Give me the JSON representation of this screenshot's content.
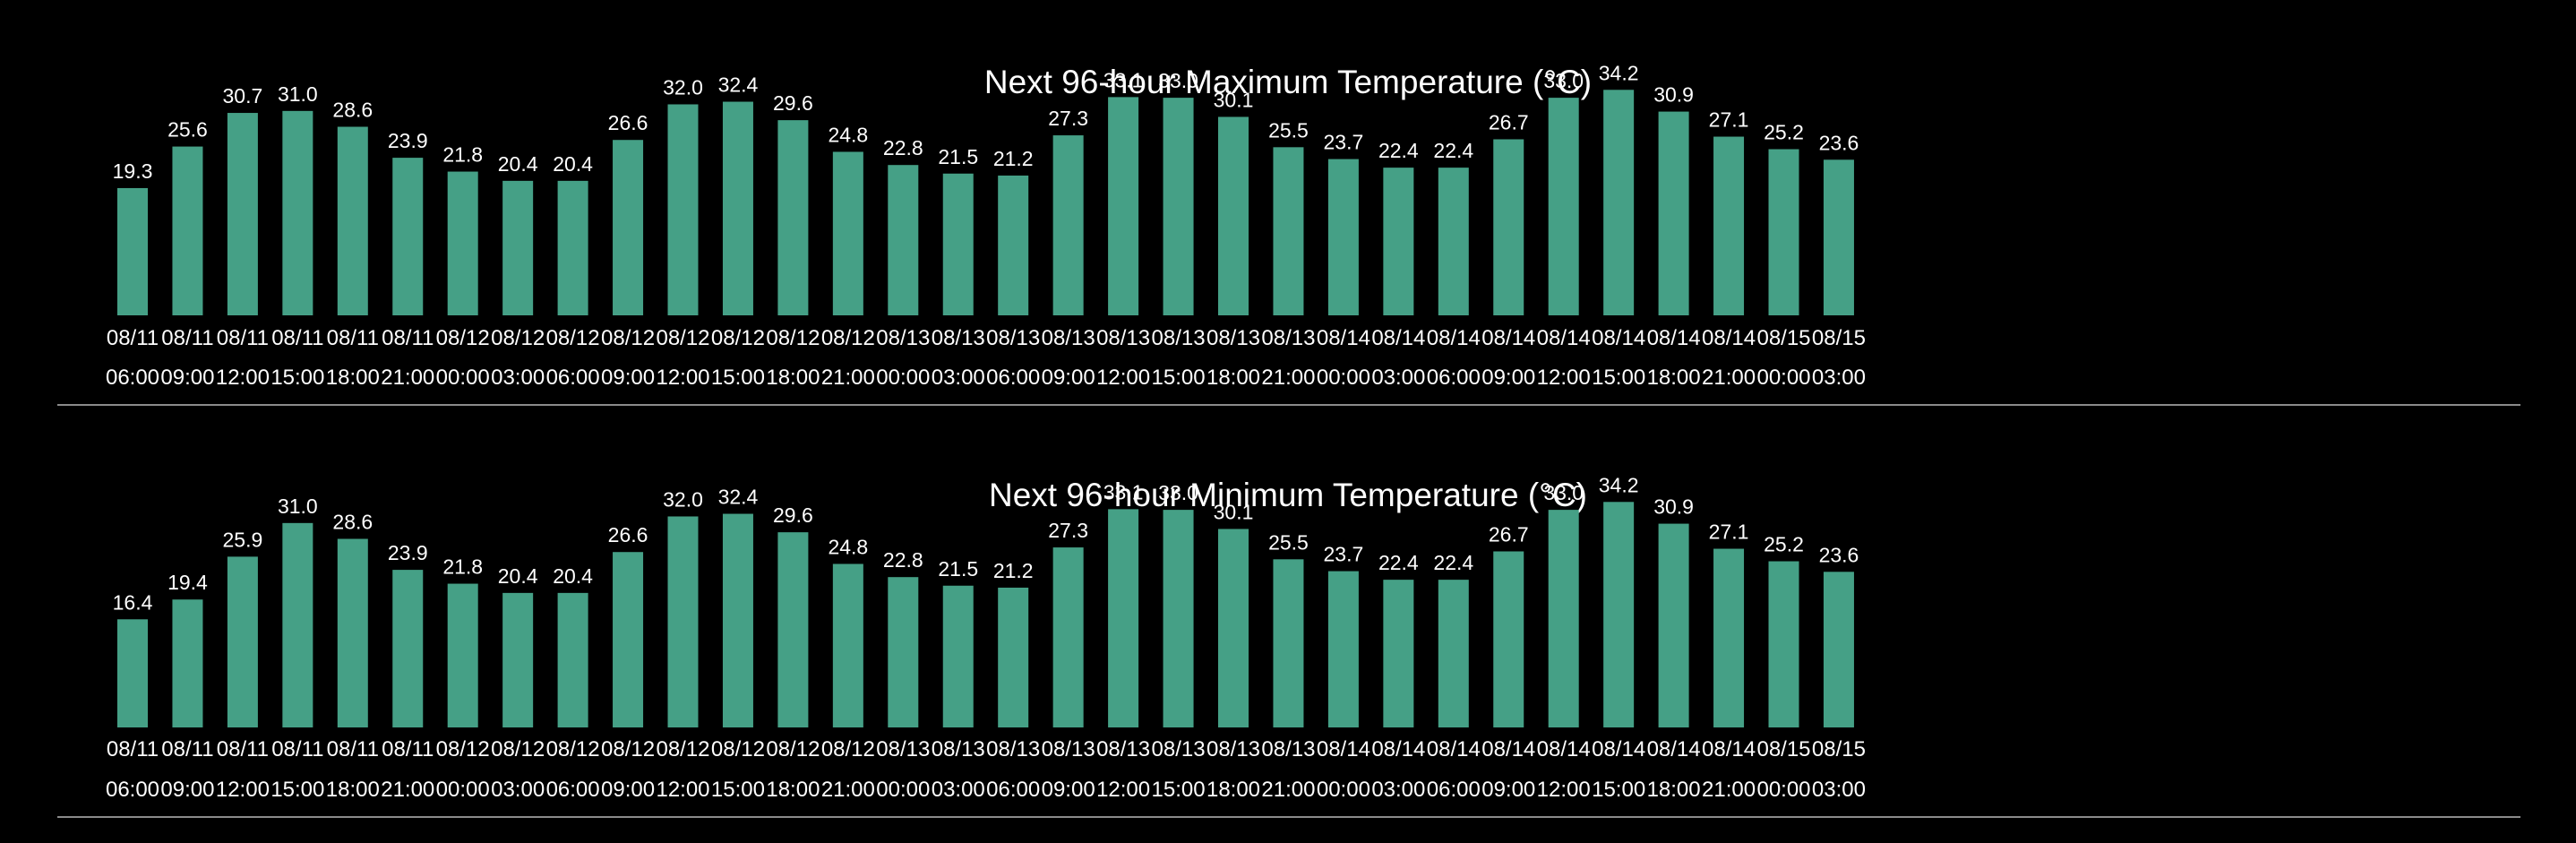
{
  "colors": {
    "background": "#000000",
    "bar": "#45a086",
    "text": "#ffffff",
    "separator": "#8a8a8a"
  },
  "chart_data": [
    {
      "type": "bar",
      "title": "Next 96-hour Maximum Temperature (°C)",
      "xlabel": "",
      "ylabel": "",
      "ylim": [
        0,
        35
      ],
      "grid": false,
      "categories": [
        [
          "08/11",
          "06:00"
        ],
        [
          "08/11",
          "09:00"
        ],
        [
          "08/11",
          "12:00"
        ],
        [
          "08/11",
          "15:00"
        ],
        [
          "08/11",
          "18:00"
        ],
        [
          "08/11",
          "21:00"
        ],
        [
          "08/12",
          "00:00"
        ],
        [
          "08/12",
          "03:00"
        ],
        [
          "08/12",
          "06:00"
        ],
        [
          "08/12",
          "09:00"
        ],
        [
          "08/12",
          "12:00"
        ],
        [
          "08/12",
          "15:00"
        ],
        [
          "08/12",
          "18:00"
        ],
        [
          "08/12",
          "21:00"
        ],
        [
          "08/13",
          "00:00"
        ],
        [
          "08/13",
          "03:00"
        ],
        [
          "08/13",
          "06:00"
        ],
        [
          "08/13",
          "09:00"
        ],
        [
          "08/13",
          "12:00"
        ],
        [
          "08/13",
          "15:00"
        ],
        [
          "08/13",
          "18:00"
        ],
        [
          "08/13",
          "21:00"
        ],
        [
          "08/14",
          "00:00"
        ],
        [
          "08/14",
          "03:00"
        ],
        [
          "08/14",
          "06:00"
        ],
        [
          "08/14",
          "09:00"
        ],
        [
          "08/14",
          "12:00"
        ],
        [
          "08/14",
          "15:00"
        ],
        [
          "08/14",
          "18:00"
        ],
        [
          "08/14",
          "21:00"
        ],
        [
          "08/15",
          "00:00"
        ],
        [
          "08/15",
          "03:00"
        ]
      ],
      "values": [
        19.3,
        25.6,
        30.7,
        31.0,
        28.6,
        23.9,
        21.8,
        20.4,
        20.4,
        26.6,
        32.0,
        32.4,
        29.6,
        24.8,
        22.8,
        21.5,
        21.2,
        27.3,
        33.1,
        33.0,
        30.1,
        25.5,
        23.7,
        22.4,
        22.4,
        26.7,
        33.0,
        34.2,
        30.9,
        27.1,
        25.2,
        23.6
      ]
    },
    {
      "type": "bar",
      "title": "Next 96-hour Minimum Temperature (°C)",
      "xlabel": "",
      "ylabel": "",
      "ylim": [
        0,
        35
      ],
      "grid": false,
      "categories": [
        [
          "08/11",
          "06:00"
        ],
        [
          "08/11",
          "09:00"
        ],
        [
          "08/11",
          "12:00"
        ],
        [
          "08/11",
          "15:00"
        ],
        [
          "08/11",
          "18:00"
        ],
        [
          "08/11",
          "21:00"
        ],
        [
          "08/12",
          "00:00"
        ],
        [
          "08/12",
          "03:00"
        ],
        [
          "08/12",
          "06:00"
        ],
        [
          "08/12",
          "09:00"
        ],
        [
          "08/12",
          "12:00"
        ],
        [
          "08/12",
          "15:00"
        ],
        [
          "08/12",
          "18:00"
        ],
        [
          "08/12",
          "21:00"
        ],
        [
          "08/13",
          "00:00"
        ],
        [
          "08/13",
          "03:00"
        ],
        [
          "08/13",
          "06:00"
        ],
        [
          "08/13",
          "09:00"
        ],
        [
          "08/13",
          "12:00"
        ],
        [
          "08/13",
          "15:00"
        ],
        [
          "08/13",
          "18:00"
        ],
        [
          "08/13",
          "21:00"
        ],
        [
          "08/14",
          "00:00"
        ],
        [
          "08/14",
          "03:00"
        ],
        [
          "08/14",
          "06:00"
        ],
        [
          "08/14",
          "09:00"
        ],
        [
          "08/14",
          "12:00"
        ],
        [
          "08/14",
          "15:00"
        ],
        [
          "08/14",
          "18:00"
        ],
        [
          "08/14",
          "21:00"
        ],
        [
          "08/15",
          "00:00"
        ],
        [
          "08/15",
          "03:00"
        ]
      ],
      "values": [
        16.4,
        19.4,
        25.9,
        31.0,
        28.6,
        23.9,
        21.8,
        20.4,
        20.4,
        26.6,
        32.0,
        32.4,
        29.6,
        24.8,
        22.8,
        21.5,
        21.2,
        27.3,
        33.1,
        33.0,
        30.1,
        25.5,
        23.7,
        22.4,
        22.4,
        26.7,
        33.0,
        34.2,
        30.9,
        27.1,
        25.2,
        23.6
      ]
    }
  ]
}
